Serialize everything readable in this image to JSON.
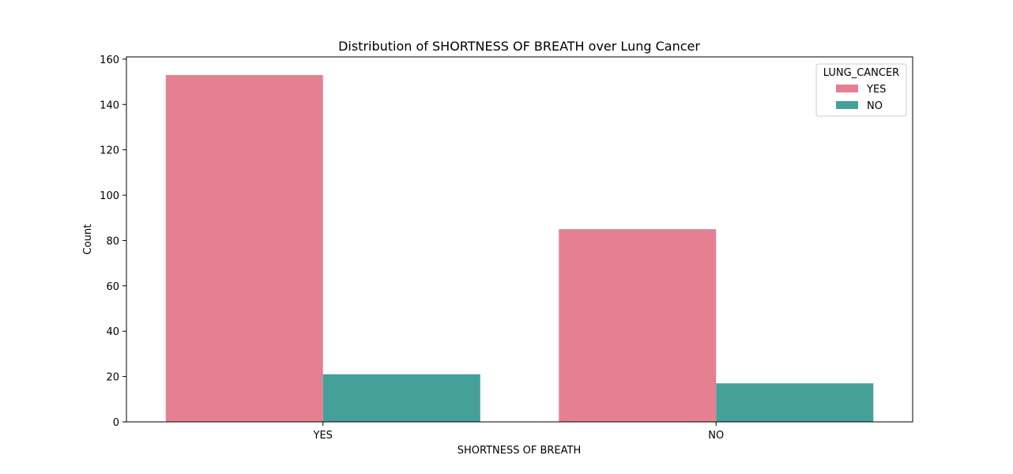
{
  "chart_data": {
    "type": "bar",
    "title": "Distribution of SHORTNESS OF BREATH over Lung Cancer",
    "xlabel": "SHORTNESS OF BREATH",
    "ylabel": "Count",
    "categories": [
      "YES",
      "NO"
    ],
    "series": [
      {
        "name": "YES",
        "values": [
          153,
          85
        ],
        "color": "#e58093"
      },
      {
        "name": "NO",
        "values": [
          21,
          17
        ],
        "color": "#45a09a"
      }
    ],
    "ylim": [
      0,
      161
    ],
    "yticks": [
      0,
      20,
      40,
      60,
      80,
      100,
      120,
      140,
      160
    ],
    "grid": false,
    "legend": {
      "title": "LUNG_CANCER",
      "placement": "top-right"
    }
  }
}
